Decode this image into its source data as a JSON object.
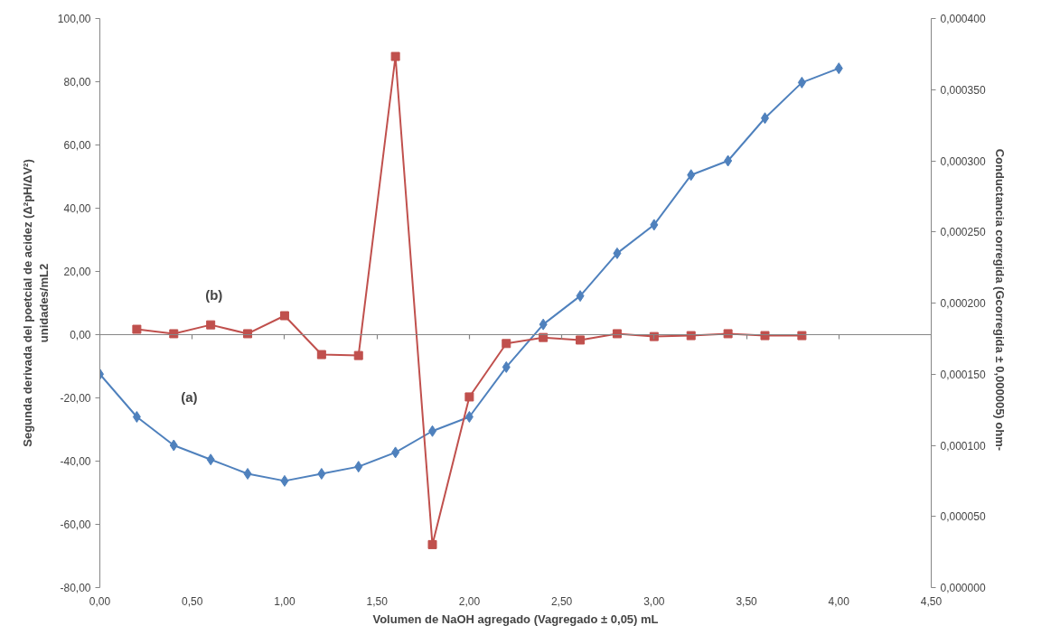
{
  "chart_data": {
    "type": "line",
    "xlabel": "Volumen de NaOH agregado (Vagregado ± 0,05) mL",
    "ylabel": "Segunda derivada del poetcial de acidez (Δ²pH/ΔV²)\nunidades/mL2",
    "y2label": "Conductancia corregida (Gcorregida ± 0,000005)   ohm-",
    "series": [
      {
        "name": "(a)",
        "color": "#4f81bd",
        "marker": "diamond",
        "axis": "y2",
        "x": [
          0,
          0.2,
          0.4,
          0.6,
          0.8,
          1.0,
          1.2,
          1.4,
          1.6,
          1.8,
          2.0,
          2.2,
          2.4,
          2.6,
          2.8,
          3.0,
          3.2,
          3.4,
          3.6,
          3.8,
          4.0
        ],
        "values": [
          0.00015,
          0.00012,
          0.0001,
          9e-05,
          8e-05,
          7.5e-05,
          8e-05,
          8.5e-05,
          9.5e-05,
          0.00011,
          0.00012,
          0.000155,
          0.000185,
          0.000205,
          0.000235,
          0.000255,
          0.00029,
          0.0003,
          0.00033,
          0.000355,
          0.000365
        ]
      },
      {
        "name": "(b)",
        "color": "#c0504d",
        "marker": "square",
        "x": [
          0.2,
          0.4,
          0.6,
          0.8,
          1.0,
          1.2,
          1.4,
          1.6,
          1.8,
          2.0,
          2.2,
          2.4,
          2.6,
          2.8,
          3.0,
          3.2,
          3.4,
          3.6,
          3.8
        ],
        "values": [
          1.7,
          0.3,
          3.1,
          0.3,
          6.0,
          -6.3,
          -6.6,
          88.0,
          -66.4,
          -19.7,
          -2.8,
          -0.9,
          -1.7,
          0.3,
          -0.6,
          -0.3,
          0.3,
          -0.3,
          -0.3
        ]
      }
    ],
    "xlim": [
      0,
      4.5
    ],
    "xticks": [
      {
        "value": 0,
        "label": "0,00"
      },
      {
        "value": 0.5,
        "label": "0,50"
      },
      {
        "value": 1,
        "label": "1,00"
      },
      {
        "value": 1.5,
        "label": "1,50"
      },
      {
        "value": 2,
        "label": "2,00"
      },
      {
        "value": 2.5,
        "label": "2,50"
      },
      {
        "value": 3,
        "label": "3,00"
      },
      {
        "value": 3.5,
        "label": "3,50"
      },
      {
        "value": 4,
        "label": "4,00"
      },
      {
        "value": 4.5,
        "label": "4,50"
      }
    ],
    "ylim": [
      -80,
      100
    ],
    "yticks": [
      {
        "value": -80,
        "label": "-80,00"
      },
      {
        "value": -60,
        "label": "-60,00"
      },
      {
        "value": -40,
        "label": "-40,00"
      },
      {
        "value": -20,
        "label": "-20,00"
      },
      {
        "value": 0,
        "label": "0,00"
      },
      {
        "value": 20,
        "label": "20,00"
      },
      {
        "value": 40,
        "label": "40,00"
      },
      {
        "value": 60,
        "label": "60,00"
      },
      {
        "value": 80,
        "label": "80,00"
      },
      {
        "value": 100,
        "label": "100,00"
      }
    ],
    "y2lim": [
      0,
      0.0004
    ],
    "y2ticks": [
      {
        "value": 0,
        "label": "0,000000"
      },
      {
        "value": 5e-05,
        "label": "0,000050"
      },
      {
        "value": 0.0001,
        "label": "0,000100"
      },
      {
        "value": 0.00015,
        "label": "0,000150"
      },
      {
        "value": 0.0002,
        "label": "0,000200"
      },
      {
        "value": 0.00025,
        "label": "0,000250"
      },
      {
        "value": 0.0003,
        "label": "0,000300"
      },
      {
        "value": 0.00035,
        "label": "0,000350"
      },
      {
        "value": 0.0004,
        "label": "0,000400"
      }
    ],
    "line_style": "solid"
  }
}
